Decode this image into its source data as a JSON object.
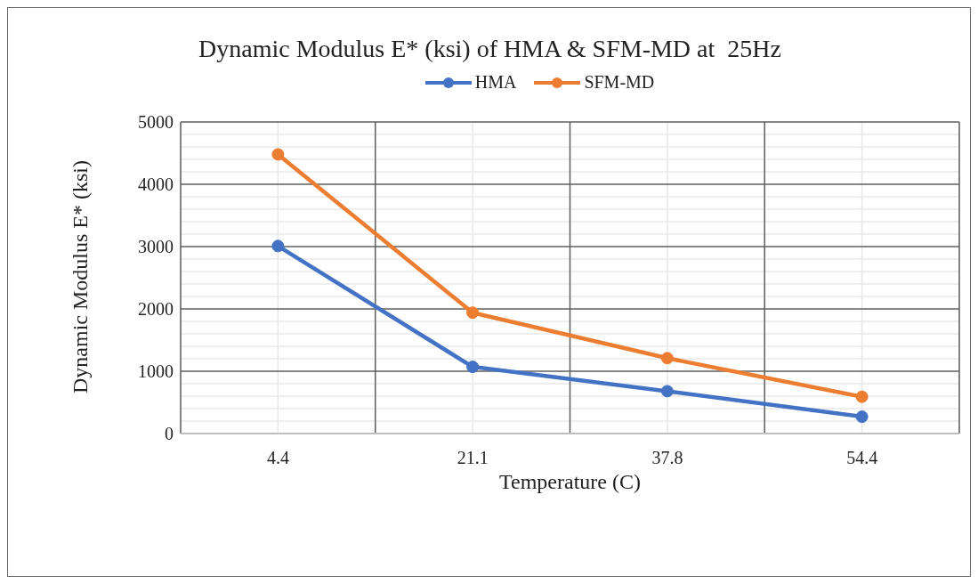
{
  "chart_data": {
    "type": "line",
    "title": "Dynamic Modulus E* (ksi) of HMA & SFM-MD at  25Hz",
    "xlabel": "Temperature (C)",
    "ylabel": "Dynamic Modulus E* (ksi)",
    "categories": [
      "4.4",
      "21.1",
      "37.8",
      "54.4"
    ],
    "series": [
      {
        "name": "HMA",
        "color": "#4472c4",
        "values": [
          3010,
          1070,
          680,
          270
        ]
      },
      {
        "name": "SFM-MD",
        "color": "#ed7d31",
        "values": [
          4480,
          1940,
          1210,
          590
        ]
      }
    ],
    "ylim": [
      0,
      5000
    ],
    "yticks": [
      0,
      1000,
      2000,
      3000,
      4000,
      5000
    ],
    "grid": true,
    "legend": "top",
    "marker": "circle",
    "line_style": "solid"
  }
}
